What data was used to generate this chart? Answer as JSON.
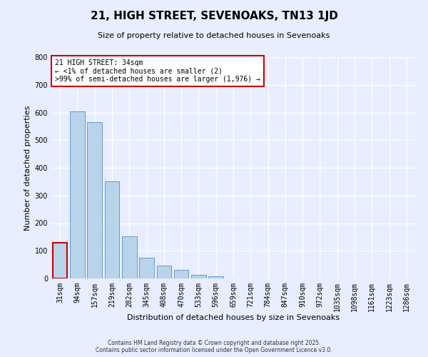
{
  "title": "21, HIGH STREET, SEVENOAKS, TN13 1JD",
  "subtitle": "Size of property relative to detached houses in Sevenoaks",
  "xlabel": "Distribution of detached houses by size in Sevenoaks",
  "ylabel": "Number of detached properties",
  "bar_values": [
    130,
    605,
    565,
    352,
    152,
    75,
    47,
    31,
    12,
    8,
    1,
    0,
    0,
    0,
    0,
    0,
    0,
    0,
    0,
    0,
    0
  ],
  "categories": [
    "31sqm",
    "94sqm",
    "157sqm",
    "219sqm",
    "282sqm",
    "345sqm",
    "408sqm",
    "470sqm",
    "533sqm",
    "596sqm",
    "659sqm",
    "721sqm",
    "784sqm",
    "847sqm",
    "910sqm",
    "972sqm",
    "1035sqm",
    "1098sqm",
    "1161sqm",
    "1223sqm",
    "1286sqm"
  ],
  "bar_color": "#b8d4ea",
  "bar_edge_color": "#6699cc",
  "highlight_bar_edge_color": "#cc0000",
  "ylim": [
    0,
    800
  ],
  "yticks": [
    0,
    100,
    200,
    300,
    400,
    500,
    600,
    700,
    800
  ],
  "annotation_title": "21 HIGH STREET: 34sqm",
  "annotation_line1": "← <1% of detached houses are smaller (2)",
  "annotation_line2": ">99% of semi-detached houses are larger (1,976) →",
  "annotation_box_color": "#ffffff",
  "annotation_box_edge": "#cc0000",
  "highlight_bin_index": 0,
  "footer_line1": "Contains HM Land Registry data © Crown copyright and database right 2025.",
  "footer_line2": "Contains public sector information licensed under the Open Government Licence v3.0.",
  "bg_color": "#e8eeff",
  "plot_bg_color": "#e8eeff",
  "grid_color": "#ffffff",
  "title_fontsize": 11,
  "subtitle_fontsize": 8,
  "xlabel_fontsize": 8,
  "ylabel_fontsize": 8,
  "tick_fontsize": 7,
  "footer_fontsize": 5.5,
  "annot_fontsize": 7
}
